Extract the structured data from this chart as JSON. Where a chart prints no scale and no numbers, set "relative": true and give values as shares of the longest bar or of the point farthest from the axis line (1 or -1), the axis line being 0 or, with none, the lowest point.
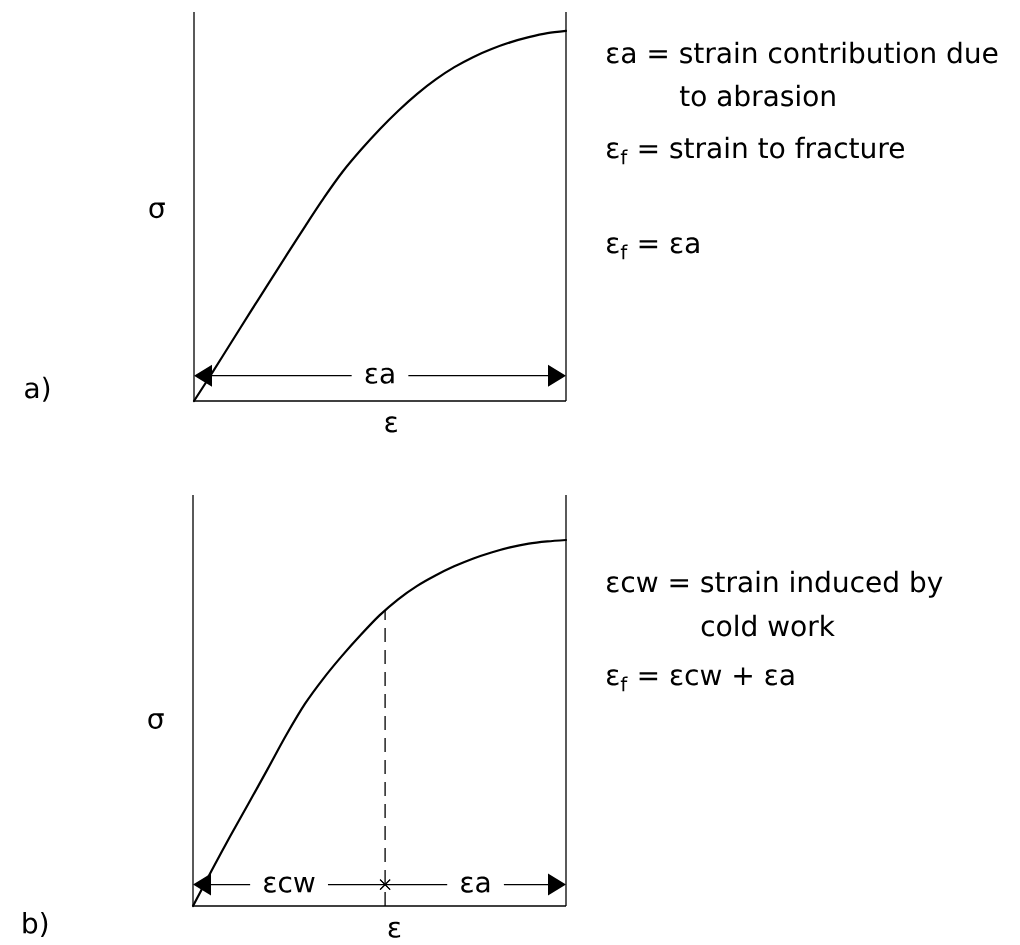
{
  "chart_data": [
    {
      "type": "line",
      "title": "a)",
      "xlabel": "ε",
      "ylabel": "σ",
      "relative": true,
      "categories": [
        null,
        null,
        null,
        null,
        null,
        null,
        null,
        null,
        null,
        null,
        null,
        null,
        null,
        null,
        null,
        null,
        null,
        null,
        null,
        null,
        null
      ],
      "series": [
        {
          "color": "#000000",
          "values": [
            0,
            0.078,
            0.158,
            0.238,
            0.317,
            0.396,
            0.474,
            0.55,
            0.62,
            0.68,
            0.735,
            0.785,
            0.83,
            0.869,
            0.902,
            0.929,
            0.951,
            0.969,
            0.983,
            0.994,
            1
          ]
        }
      ],
      "annotations": [
        "εa = strain contribution due to abrasion",
        "ε$_{f}$ = strain to fracture",
        "ε$_{f}$ = εa",
        "εa"
      ]
    },
    {
      "type": "line",
      "title": "b)",
      "xlabel": "ε",
      "ylabel": "σ",
      "relative": true,
      "categories": [
        null,
        null,
        null,
        null,
        null,
        null,
        null,
        null,
        null,
        null,
        null,
        null,
        null,
        null,
        null,
        null,
        null,
        null,
        null,
        null,
        null
      ],
      "series": [
        {
          "color": "#000000",
          "values": [
            0,
            0.097,
            0.191,
            0.282,
            0.374,
            0.467,
            0.552,
            0.622,
            0.684,
            0.741,
            0.794,
            0.838,
            0.874,
            0.903,
            0.928,
            0.949,
            0.966,
            0.98,
            0.99,
            0.996,
            1
          ]
        }
      ],
      "annotations": [
        "εcw = strain induced by cold work",
        "ε$_{f}$ = εcw + εa",
        "εcw",
        "εa"
      ]
    }
  ]
}
